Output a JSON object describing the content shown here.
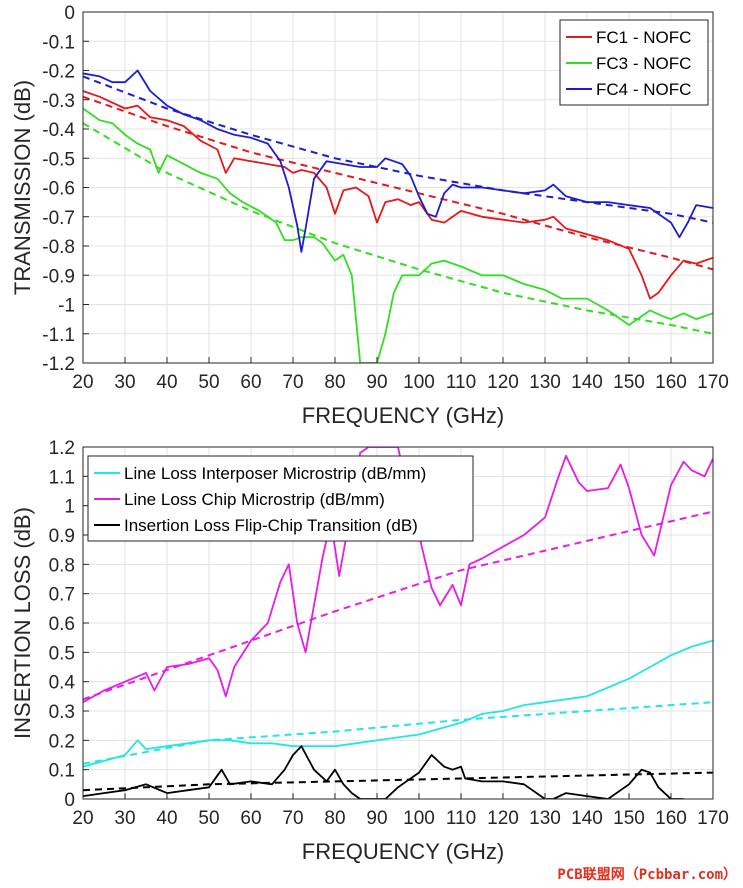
{
  "watermark": "PCB联盟网（Pcbbar.com）",
  "chart_data": [
    {
      "type": "line",
      "xlabel": "FREQUENCY (GHz)",
      "ylabel": "TRANSMISSION (dB)",
      "xlim": [
        20,
        170
      ],
      "ylim": [
        -1.2,
        0
      ],
      "xticks": [
        20,
        30,
        40,
        50,
        60,
        70,
        80,
        90,
        100,
        110,
        120,
        130,
        140,
        150,
        160,
        170
      ],
      "yticks": [
        0,
        -0.1,
        -0.2,
        -0.3,
        -0.4,
        -0.5,
        -0.6,
        -0.7,
        -0.8,
        -0.9,
        -1,
        -1.1,
        -1.2
      ],
      "grid": true,
      "legend_placement": "top-right",
      "series": [
        {
          "name": "FC1 - NOFC",
          "color": "#e31a1c",
          "x": [
            20,
            24,
            27,
            30,
            33,
            36,
            40,
            44,
            48,
            52,
            54,
            56,
            60,
            64,
            68,
            70,
            72,
            75,
            78,
            80,
            82,
            85,
            88,
            90,
            92,
            95,
            98,
            100,
            103,
            106,
            110,
            115,
            120,
            125,
            130,
            132,
            135,
            140,
            145,
            150,
            153,
            155,
            157,
            160,
            163,
            166,
            170
          ],
          "y": [
            -0.27,
            -0.29,
            -0.31,
            -0.33,
            -0.32,
            -0.36,
            -0.37,
            -0.39,
            -0.44,
            -0.47,
            -0.55,
            -0.5,
            -0.51,
            -0.52,
            -0.53,
            -0.55,
            -0.54,
            -0.55,
            -0.6,
            -0.69,
            -0.61,
            -0.6,
            -0.63,
            -0.72,
            -0.65,
            -0.64,
            -0.66,
            -0.65,
            -0.71,
            -0.72,
            -0.68,
            -0.7,
            -0.71,
            -0.72,
            -0.71,
            -0.7,
            -0.74,
            -0.76,
            -0.78,
            -0.81,
            -0.9,
            -0.98,
            -0.96,
            -0.9,
            -0.85,
            -0.86,
            -0.84
          ]
        },
        {
          "name": "FC3 - NOFC",
          "color": "#33dd22",
          "x": [
            20,
            24,
            27,
            30,
            33,
            36,
            38,
            40,
            44,
            48,
            52,
            55,
            58,
            62,
            66,
            68,
            70,
            72,
            75,
            77,
            80,
            82,
            84,
            86,
            88,
            90,
            92,
            94,
            96,
            100,
            103,
            106,
            108,
            110,
            115,
            120,
            125,
            130,
            134,
            140,
            145,
            150,
            153,
            155,
            158,
            160,
            163,
            166,
            170
          ],
          "y": [
            -0.33,
            -0.37,
            -0.38,
            -0.42,
            -0.45,
            -0.47,
            -0.55,
            -0.49,
            -0.52,
            -0.55,
            -0.57,
            -0.62,
            -0.65,
            -0.68,
            -0.72,
            -0.78,
            -0.78,
            -0.77,
            -0.77,
            -0.79,
            -0.85,
            -0.83,
            -0.9,
            -1.2,
            -1.2,
            -1.2,
            -1.1,
            -0.96,
            -0.9,
            -0.9,
            -0.86,
            -0.85,
            -0.86,
            -0.87,
            -0.9,
            -0.9,
            -0.93,
            -0.95,
            -0.98,
            -0.98,
            -1.02,
            -1.07,
            -1.04,
            -1.02,
            -1.04,
            -1.05,
            -1.03,
            -1.05,
            -1.03
          ]
        },
        {
          "name": "FC4 - NOFC",
          "color": "#1d1dcc",
          "x": [
            20,
            24,
            27,
            30,
            33,
            36,
            40,
            44,
            48,
            52,
            56,
            60,
            64,
            67,
            69,
            71,
            72,
            73,
            75,
            78,
            82,
            86,
            90,
            92,
            94,
            96,
            98,
            100,
            102,
            104,
            106,
            108,
            110,
            115,
            120,
            125,
            130,
            132,
            135,
            140,
            145,
            150,
            155,
            160,
            162,
            164,
            166,
            170
          ],
          "y": [
            -0.21,
            -0.22,
            -0.24,
            -0.24,
            -0.2,
            -0.27,
            -0.32,
            -0.35,
            -0.37,
            -0.4,
            -0.42,
            -0.43,
            -0.45,
            -0.51,
            -0.6,
            -0.73,
            -0.82,
            -0.74,
            -0.57,
            -0.51,
            -0.52,
            -0.53,
            -0.53,
            -0.5,
            -0.51,
            -0.52,
            -0.56,
            -0.63,
            -0.69,
            -0.7,
            -0.62,
            -0.59,
            -0.6,
            -0.6,
            -0.61,
            -0.62,
            -0.61,
            -0.59,
            -0.63,
            -0.65,
            -0.65,
            -0.66,
            -0.67,
            -0.72,
            -0.77,
            -0.72,
            -0.66,
            -0.67
          ]
        }
      ],
      "fits": [
        {
          "series": "FC1 - NOFC",
          "color": "#e31a1c",
          "x": [
            20,
            40,
            60,
            80,
            100,
            120,
            140,
            160,
            170
          ],
          "y": [
            -0.29,
            -0.39,
            -0.48,
            -0.55,
            -0.62,
            -0.69,
            -0.77,
            -0.84,
            -0.88
          ]
        },
        {
          "series": "FC3 - NOFC",
          "color": "#33dd22",
          "x": [
            20,
            40,
            60,
            80,
            100,
            120,
            140,
            160,
            170
          ],
          "y": [
            -0.38,
            -0.55,
            -0.68,
            -0.79,
            -0.88,
            -0.96,
            -1.02,
            -1.07,
            -1.1
          ]
        },
        {
          "series": "FC4 - NOFC",
          "color": "#1d1dcc",
          "x": [
            20,
            40,
            60,
            80,
            100,
            120,
            140,
            160,
            170
          ],
          "y": [
            -0.22,
            -0.33,
            -0.42,
            -0.5,
            -0.56,
            -0.61,
            -0.65,
            -0.69,
            -0.72
          ]
        }
      ]
    },
    {
      "type": "line",
      "xlabel": "FREQUENCY (GHz)",
      "ylabel": "INSERTION LOSS (dB)",
      "xlim": [
        20,
        170
      ],
      "ylim": [
        0,
        1.2
      ],
      "xticks": [
        20,
        30,
        40,
        50,
        60,
        70,
        80,
        90,
        100,
        110,
        120,
        130,
        140,
        150,
        160,
        170
      ],
      "yticks": [
        0,
        0.1,
        0.2,
        0.3,
        0.4,
        0.5,
        0.6,
        0.7,
        0.8,
        0.9,
        1,
        1.1,
        1.2
      ],
      "grid": true,
      "legend_placement": "top-left",
      "series": [
        {
          "name": "Line Loss Interposer Microstrip (dB/mm)",
          "color": "#22e5e5",
          "x": [
            20,
            25,
            30,
            33,
            35,
            40,
            45,
            50,
            55,
            60,
            65,
            70,
            75,
            80,
            85,
            90,
            95,
            100,
            105,
            110,
            115,
            120,
            125,
            130,
            135,
            140,
            145,
            150,
            155,
            160,
            165,
            170
          ],
          "y": [
            0.11,
            0.13,
            0.15,
            0.2,
            0.17,
            0.18,
            0.19,
            0.2,
            0.2,
            0.19,
            0.19,
            0.18,
            0.18,
            0.18,
            0.19,
            0.2,
            0.21,
            0.22,
            0.24,
            0.26,
            0.29,
            0.3,
            0.32,
            0.33,
            0.34,
            0.35,
            0.38,
            0.41,
            0.45,
            0.49,
            0.52,
            0.54
          ]
        },
        {
          "name": "Line Loss Chip Microstrip (dB/mm)",
          "color": "#e61de6",
          "x": [
            20,
            25,
            30,
            35,
            37,
            40,
            45,
            50,
            52,
            54,
            56,
            60,
            64,
            67,
            69,
            71,
            73,
            75,
            77,
            79,
            81,
            84,
            86,
            88,
            90,
            92,
            95,
            98,
            100,
            103,
            105,
            108,
            110,
            112,
            115,
            120,
            125,
            130,
            133,
            135,
            138,
            140,
            145,
            148,
            150,
            153,
            156,
            158,
            160,
            163,
            165,
            168,
            170
          ],
          "y": [
            0.33,
            0.37,
            0.4,
            0.43,
            0.37,
            0.45,
            0.46,
            0.48,
            0.44,
            0.35,
            0.45,
            0.54,
            0.6,
            0.74,
            0.8,
            0.6,
            0.5,
            0.66,
            0.82,
            0.95,
            0.76,
            1.0,
            1.18,
            1.2,
            1.2,
            1.2,
            1.2,
            1.0,
            0.9,
            0.72,
            0.66,
            0.73,
            0.66,
            0.8,
            0.82,
            0.86,
            0.9,
            0.96,
            1.09,
            1.17,
            1.08,
            1.05,
            1.06,
            1.14,
            1.06,
            0.9,
            0.83,
            0.95,
            1.07,
            1.15,
            1.12,
            1.1,
            1.16
          ]
        },
        {
          "name": "Insertion Loss Flip-Chip Transition (dB)",
          "color": "#000000",
          "x": [
            20,
            25,
            30,
            35,
            40,
            45,
            50,
            53,
            55,
            60,
            65,
            68,
            70,
            72,
            75,
            78,
            80,
            82,
            84,
            86,
            88,
            90,
            92,
            95,
            100,
            103,
            106,
            108,
            110,
            111,
            115,
            120,
            125,
            130,
            132,
            135,
            140,
            145,
            150,
            153,
            155,
            157,
            160,
            163
          ],
          "y": [
            0.01,
            0.02,
            0.03,
            0.05,
            0.02,
            0.03,
            0.04,
            0.1,
            0.05,
            0.06,
            0.05,
            0.1,
            0.15,
            0.18,
            0.1,
            0.06,
            0.1,
            0.05,
            0.02,
            0.0,
            0.0,
            0.0,
            0.0,
            0.04,
            0.09,
            0.15,
            0.11,
            0.1,
            0.11,
            0.07,
            0.06,
            0.06,
            0.05,
            0.0,
            0.0,
            0.02,
            0.01,
            0.0,
            0.05,
            0.1,
            0.09,
            0.04,
            0.0,
            0.0
          ]
        }
      ],
      "fits": [
        {
          "series": "Line Loss Interposer Microstrip (dB/mm)",
          "color": "#22e5e5",
          "x": [
            20,
            50,
            80,
            110,
            140,
            170
          ],
          "y": [
            0.12,
            0.2,
            0.23,
            0.27,
            0.3,
            0.33
          ]
        },
        {
          "series": "Line Loss Chip Microstrip (dB/mm)",
          "color": "#e61de6",
          "x": [
            20,
            50,
            80,
            110,
            140,
            170
          ],
          "y": [
            0.34,
            0.49,
            0.64,
            0.78,
            0.88,
            0.98
          ]
        },
        {
          "series": "Insertion Loss Flip-Chip Transition (dB)",
          "color": "#000000",
          "x": [
            20,
            50,
            80,
            110,
            140,
            170
          ],
          "y": [
            0.03,
            0.05,
            0.06,
            0.07,
            0.08,
            0.09
          ]
        }
      ]
    }
  ]
}
